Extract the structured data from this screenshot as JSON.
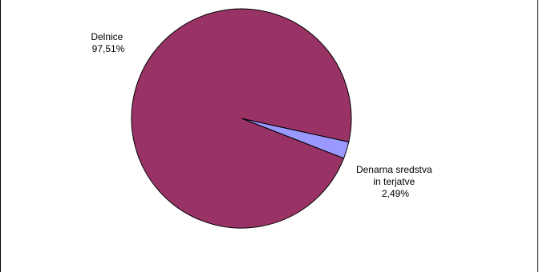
{
  "chart_data": {
    "type": "pie",
    "title": "",
    "slices": [
      {
        "label_lines": [
          "Delnice"
        ],
        "percent_label": "97,51%",
        "value": 97.51,
        "color": "#993366"
      },
      {
        "label_lines": [
          "Denarna sredstva",
          "in terjatve"
        ],
        "percent_label": "2,49%",
        "value": 2.49,
        "color": "#9999ff"
      }
    ],
    "legend": "none"
  }
}
